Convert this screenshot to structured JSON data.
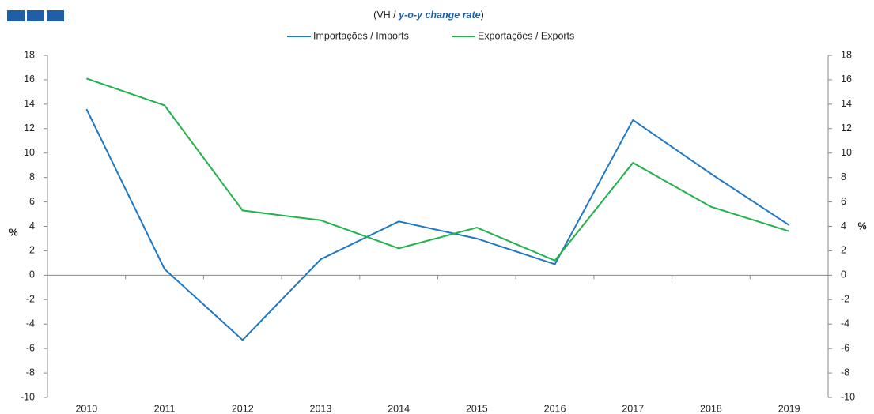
{
  "chart_data": {
    "type": "line",
    "title": {
      "prefix": "(VH / ",
      "emphasis": "y-o-y change rate",
      "suffix": ")"
    },
    "y_label": "%",
    "y2_label": "%",
    "categories": [
      "2010",
      "2011",
      "2012",
      "2013",
      "2014",
      "2015",
      "2016",
      "2017",
      "2018",
      "2019"
    ],
    "series": [
      {
        "name": "Importações / Imports",
        "color": "#1f78c4",
        "values": [
          13.6,
          0.5,
          -5.3,
          1.3,
          4.4,
          3.0,
          0.9,
          12.7,
          8.3,
          4.1
        ]
      },
      {
        "name": "Exportações / Exports",
        "color": "#22b24c",
        "values": [
          16.1,
          13.9,
          5.3,
          4.5,
          2.2,
          3.9,
          1.2,
          9.2,
          5.6,
          3.6
        ]
      }
    ],
    "ylim": [
      -10,
      18
    ],
    "yticks": [
      -10,
      -8,
      -6,
      -4,
      -2,
      0,
      2,
      4,
      6,
      8,
      10,
      12,
      14,
      16,
      18
    ],
    "y2lim": [
      -10,
      18
    ],
    "y2ticks": [
      -10,
      -8,
      -6,
      -4,
      -2,
      0,
      2,
      4,
      6,
      8,
      10,
      12,
      14,
      16,
      18
    ],
    "legend": "top"
  }
}
